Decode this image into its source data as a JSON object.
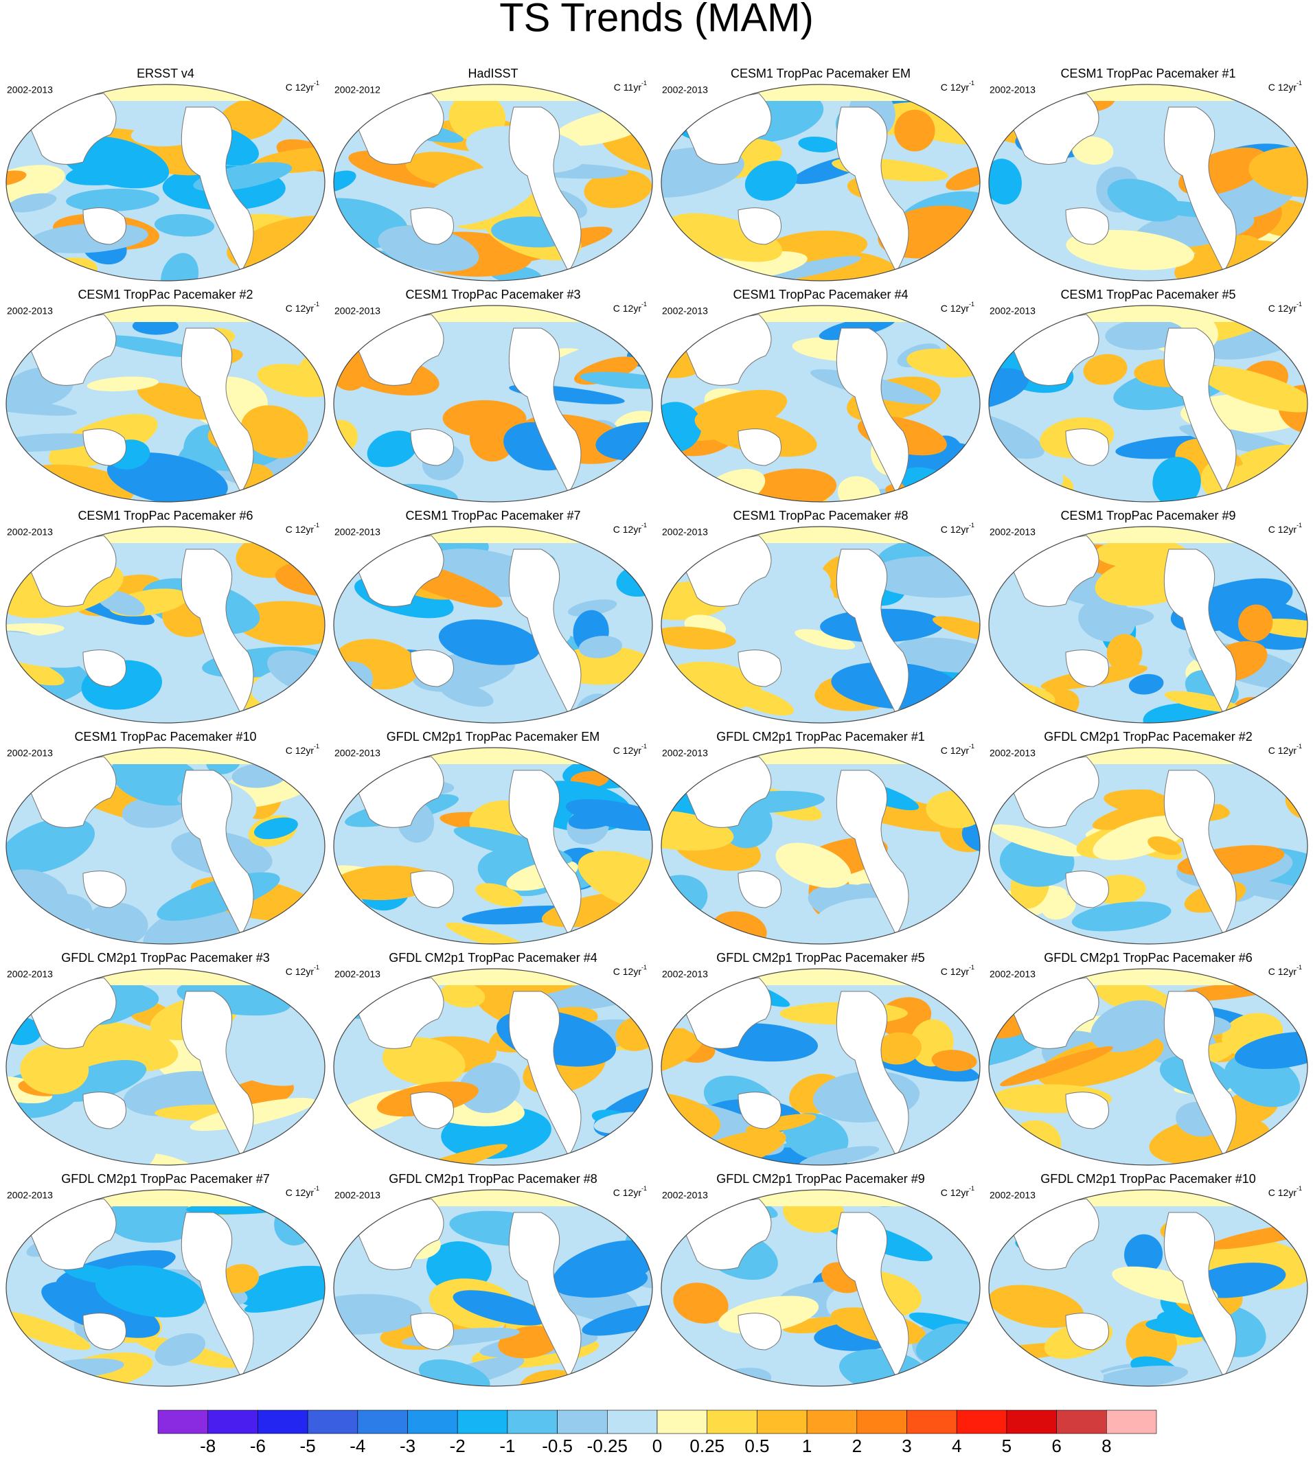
{
  "title": "TS Trends (MAM)",
  "panels": [
    {
      "title": "ERSST v4",
      "period": "2002-2013",
      "units": "C 12yr",
      "units_exponent": "-1"
    },
    {
      "title": "HadISST",
      "period": "2002-2012",
      "units": "C 11yr",
      "units_exponent": "-1"
    },
    {
      "title": "CESM1 TropPac Pacemaker EM",
      "period": "2002-2013",
      "units": "C 12yr",
      "units_exponent": "-1"
    },
    {
      "title": "CESM1 TropPac Pacemaker #1",
      "period": "2002-2013",
      "units": "C 12yr",
      "units_exponent": "-1"
    },
    {
      "title": "CESM1 TropPac Pacemaker #2",
      "period": "2002-2013",
      "units": "C 12yr",
      "units_exponent": "-1"
    },
    {
      "title": "CESM1 TropPac Pacemaker #3",
      "period": "2002-2013",
      "units": "C 12yr",
      "units_exponent": "-1"
    },
    {
      "title": "CESM1 TropPac Pacemaker #4",
      "period": "2002-2013",
      "units": "C 12yr",
      "units_exponent": "-1"
    },
    {
      "title": "CESM1 TropPac Pacemaker #5",
      "period": "2002-2013",
      "units": "C 12yr",
      "units_exponent": "-1"
    },
    {
      "title": "CESM1 TropPac Pacemaker #6",
      "period": "2002-2013",
      "units": "C 12yr",
      "units_exponent": "-1"
    },
    {
      "title": "CESM1 TropPac Pacemaker #7",
      "period": "2002-2013",
      "units": "C 12yr",
      "units_exponent": "-1"
    },
    {
      "title": "CESM1 TropPac Pacemaker #8",
      "period": "2002-2013",
      "units": "C 12yr",
      "units_exponent": "-1"
    },
    {
      "title": "CESM1 TropPac Pacemaker #9",
      "period": "2002-2013",
      "units": "C 12yr",
      "units_exponent": "-1"
    },
    {
      "title": "CESM1 TropPac Pacemaker #10",
      "period": "2002-2013",
      "units": "C 12yr",
      "units_exponent": "-1"
    },
    {
      "title": "GFDL CM2p1 TropPac Pacemaker EM",
      "period": "2002-2013",
      "units": "C 12yr",
      "units_exponent": "-1"
    },
    {
      "title": "GFDL CM2p1 TropPac Pacemaker #1",
      "period": "2002-2013",
      "units": "C 12yr",
      "units_exponent": "-1"
    },
    {
      "title": "GFDL CM2p1 TropPac Pacemaker #2",
      "period": "2002-2013",
      "units": "C 12yr",
      "units_exponent": "-1"
    },
    {
      "title": "GFDL CM2p1 TropPac Pacemaker #3",
      "period": "2002-2013",
      "units": "C 12yr",
      "units_exponent": "-1"
    },
    {
      "title": "GFDL CM2p1 TropPac Pacemaker #4",
      "period": "2002-2013",
      "units": "C 12yr",
      "units_exponent": "-1"
    },
    {
      "title": "GFDL CM2p1 TropPac Pacemaker #5",
      "period": "2002-2013",
      "units": "C 12yr",
      "units_exponent": "-1"
    },
    {
      "title": "GFDL CM2p1 TropPac Pacemaker #6",
      "period": "2002-2013",
      "units": "C 12yr",
      "units_exponent": "-1"
    },
    {
      "title": "GFDL CM2p1 TropPac Pacemaker #7",
      "period": "2002-2013",
      "units": "C 12yr",
      "units_exponent": "-1"
    },
    {
      "title": "GFDL CM2p1 TropPac Pacemaker #8",
      "period": "2002-2013",
      "units": "C 12yr",
      "units_exponent": "-1"
    },
    {
      "title": "GFDL CM2p1 TropPac Pacemaker #9",
      "period": "2002-2013",
      "units": "C 12yr",
      "units_exponent": "-1"
    },
    {
      "title": "GFDL CM2p1 TropPac Pacemaker #10",
      "period": "2002-2013",
      "units": "C 12yr",
      "units_exponent": "-1"
    }
  ],
  "colorbar": {
    "colors": [
      "#8a2be2",
      "#4b1ef0",
      "#2326f0",
      "#3a5fe0",
      "#2d7de8",
      "#1e96f0",
      "#14b4f5",
      "#5ac3f0",
      "#96cdee",
      "#bde1f5",
      "#fffab4",
      "#ffdc46",
      "#ffbe28",
      "#ffa01e",
      "#ff8214",
      "#ff5514",
      "#ff1e0a",
      "#dc0a0a",
      "#d23c3c",
      "#ffb4b4"
    ],
    "labels": [
      -8,
      -6,
      -5,
      -4,
      -3,
      -2,
      -1,
      -0.5,
      -0.25,
      0,
      0.25,
      0.5,
      1,
      2,
      3,
      4,
      5,
      6,
      8
    ]
  }
}
